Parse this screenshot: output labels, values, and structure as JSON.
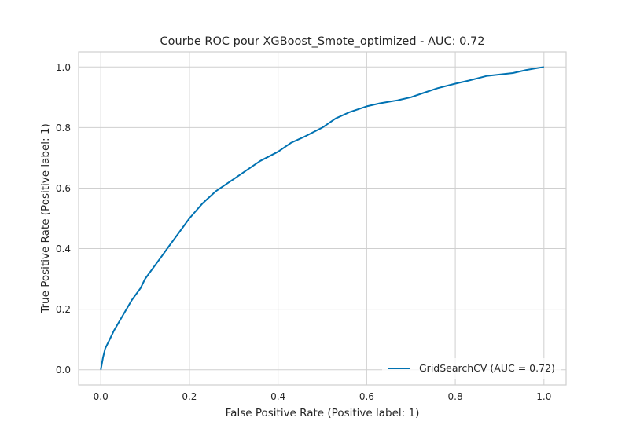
{
  "chart_data": {
    "type": "line",
    "title": "Courbe ROC pour XGBoost_Smote_optimized - AUC: 0.72",
    "xlabel": "False Positive Rate (Positive label: 1)",
    "ylabel": "True Positive Rate (Positive label: 1)",
    "xlim": [
      -0.05,
      1.05
    ],
    "ylim": [
      -0.05,
      1.05
    ],
    "xticks": [
      "0.0",
      "0.2",
      "0.4",
      "0.6",
      "0.8",
      "1.0"
    ],
    "yticks": [
      "0.0",
      "0.2",
      "0.4",
      "0.6",
      "0.8",
      "1.0"
    ],
    "grid": true,
    "legend_position": "lower-right",
    "series": [
      {
        "name": "GridSearchCV (AUC = 0.72)",
        "color": "#0072b2",
        "x": [
          0.0,
          0.005,
          0.01,
          0.02,
          0.03,
          0.05,
          0.07,
          0.09,
          0.1,
          0.12,
          0.14,
          0.15,
          0.17,
          0.2,
          0.23,
          0.26,
          0.28,
          0.3,
          0.33,
          0.36,
          0.4,
          0.43,
          0.46,
          0.5,
          0.53,
          0.56,
          0.6,
          0.63,
          0.67,
          0.7,
          0.73,
          0.76,
          0.8,
          0.83,
          0.87,
          0.9,
          0.93,
          0.96,
          0.98,
          1.0
        ],
        "y": [
          0.0,
          0.04,
          0.07,
          0.1,
          0.13,
          0.18,
          0.23,
          0.27,
          0.3,
          0.34,
          0.38,
          0.4,
          0.44,
          0.5,
          0.55,
          0.59,
          0.61,
          0.63,
          0.66,
          0.69,
          0.72,
          0.75,
          0.77,
          0.8,
          0.83,
          0.85,
          0.87,
          0.88,
          0.89,
          0.9,
          0.915,
          0.93,
          0.945,
          0.955,
          0.97,
          0.975,
          0.98,
          0.99,
          0.995,
          1.0
        ]
      }
    ]
  }
}
